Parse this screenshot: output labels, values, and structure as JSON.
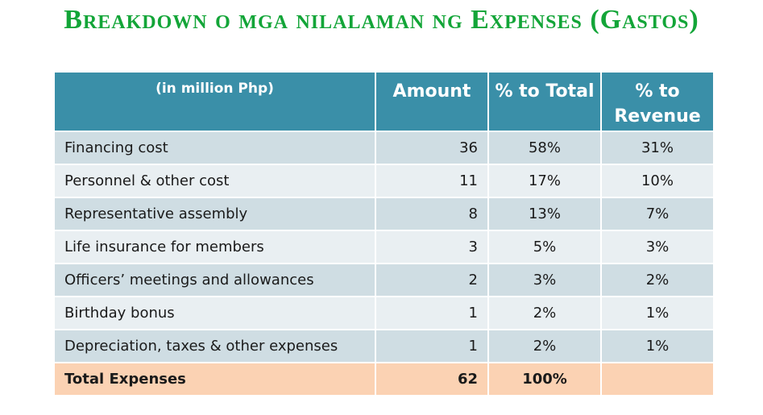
{
  "title": "Breakdown o mga nilalaman ng Expenses (Gastos)",
  "table": {
    "headers": [
      "(in million Php)",
      "Amount",
      "% to Total",
      "% to Revenue"
    ],
    "rows": [
      {
        "label": "Financing cost",
        "amount": "36",
        "pct_total": "58%",
        "pct_revenue": "31%"
      },
      {
        "label": "Personnel & other cost",
        "amount": "11",
        "pct_total": "17%",
        "pct_revenue": "10%"
      },
      {
        "label": "Representative assembly",
        "amount": "8",
        "pct_total": "13%",
        "pct_revenue": "7%"
      },
      {
        "label": "Life insurance for members",
        "amount": "3",
        "pct_total": "5%",
        "pct_revenue": "3%"
      },
      {
        "label": "Officers’ meetings and allowances",
        "amount": "2",
        "pct_total": "3%",
        "pct_revenue": "2%"
      },
      {
        "label": "Birthday bonus",
        "amount": "1",
        "pct_total": "2%",
        "pct_revenue": "1%"
      },
      {
        "label": "Depreciation, taxes & other expenses",
        "amount": "1",
        "pct_total": "2%",
        "pct_revenue": "1%"
      }
    ],
    "total": {
      "label": "Total Expenses",
      "amount": "62",
      "pct_total": "100%",
      "pct_revenue": ""
    }
  },
  "colors": {
    "title": "#13a538",
    "header_bg": "#3a8fa8",
    "row_odd": "#cfdde3",
    "row_even": "#e9eff2",
    "total_bg": "#fbd2b3"
  }
}
